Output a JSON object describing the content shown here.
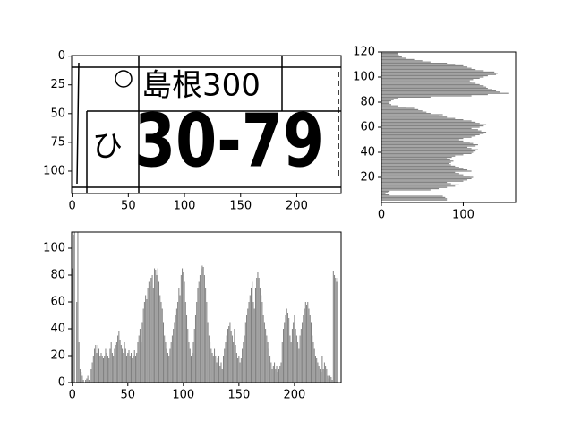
{
  "chart_data": [
    {
      "type": "image",
      "texts": [
        "島根300",
        "ひ",
        "30-79"
      ],
      "xlim": [
        -0.5,
        239.5
      ],
      "ylim": [
        119.5,
        -0.5
      ],
      "xticks": [
        0,
        50,
        100,
        150,
        200
      ],
      "yticks": [
        0,
        25,
        50,
        75,
        100
      ]
    },
    {
      "type": "barh",
      "color": "#808080",
      "values": [
        0,
        0,
        80,
        80,
        78,
        75,
        10,
        5,
        8,
        10,
        60,
        70,
        80,
        90,
        95,
        85,
        80,
        100,
        105,
        110,
        112,
        108,
        100,
        95,
        90,
        110,
        105,
        100,
        95,
        90,
        85,
        82,
        85,
        88,
        84,
        80,
        86,
        90,
        100,
        110,
        112,
        115,
        118,
        110,
        105,
        115,
        118,
        112,
        108,
        100,
        95,
        100,
        110,
        115,
        120,
        125,
        128,
        122,
        118,
        110,
        120,
        125,
        128,
        120,
        115,
        110,
        100,
        90,
        80,
        70,
        75,
        60,
        55,
        50,
        45,
        40,
        30,
        20,
        12,
        10,
        10,
        12,
        15,
        20,
        60,
        110,
        130,
        155,
        145,
        140,
        135,
        130,
        128,
        125,
        120,
        115,
        110,
        108,
        112,
        120,
        125,
        130,
        140,
        142,
        138,
        125,
        115,
        110,
        105,
        100,
        90,
        80,
        60,
        50,
        40,
        30,
        25,
        22,
        20,
        20
      ],
      "xlim": [
        0,
        164
      ],
      "ylim": [
        0,
        120
      ],
      "xticks": [
        0,
        100
      ],
      "yticks": [
        20,
        40,
        60,
        80,
        100,
        120
      ]
    },
    {
      "type": "bar",
      "color": "#808080",
      "values": [
        85,
        110,
        112,
        0,
        60,
        112,
        30,
        10,
        8,
        5,
        2,
        0,
        2,
        3,
        5,
        2,
        0,
        10,
        15,
        20,
        25,
        28,
        22,
        28,
        25,
        20,
        22,
        20,
        18,
        20,
        25,
        22,
        20,
        18,
        25,
        30,
        22,
        20,
        25,
        28,
        30,
        35,
        38,
        32,
        28,
        25,
        22,
        30,
        25,
        20,
        22,
        24,
        20,
        22,
        18,
        20,
        24,
        20,
        22,
        30,
        35,
        40,
        30,
        45,
        55,
        60,
        65,
        62,
        70,
        75,
        72,
        78,
        80,
        70,
        85,
        84,
        80,
        85,
        75,
        65,
        60,
        55,
        45,
        35,
        30,
        25,
        22,
        20,
        25,
        30,
        35,
        40,
        45,
        50,
        55,
        60,
        70,
        65,
        80,
        85,
        82,
        75,
        60,
        50,
        40,
        30,
        25,
        20,
        22,
        30,
        40,
        50,
        60,
        70,
        75,
        80,
        85,
        87,
        86,
        80,
        70,
        60,
        45,
        35,
        30,
        25,
        22,
        20,
        25,
        20,
        15,
        18,
        20,
        12,
        15,
        10,
        20,
        25,
        30,
        35,
        40,
        42,
        45,
        38,
        35,
        30,
        40,
        28,
        22,
        18,
        20,
        15,
        18,
        25,
        30,
        35,
        45,
        50,
        55,
        60,
        65,
        70,
        75,
        60,
        55,
        70,
        78,
        82,
        78,
        70,
        65,
        60,
        50,
        45,
        40,
        35,
        30,
        25,
        20,
        15,
        10,
        12,
        15,
        10,
        12,
        8,
        10,
        12,
        15,
        30,
        40,
        45,
        50,
        55,
        52,
        48,
        35,
        30,
        40,
        45,
        50,
        40,
        35,
        30,
        25,
        35,
        40,
        45,
        50,
        55,
        60,
        58,
        60,
        55,
        50,
        45,
        35,
        30,
        25,
        20,
        18,
        15,
        12,
        10,
        8,
        20,
        10,
        15,
        12,
        10,
        5,
        3,
        5,
        4,
        2,
        83,
        80,
        78,
        75,
        78
      ],
      "xlim": [
        -0.6,
        242
      ],
      "ylim": [
        0,
        112
      ],
      "xticks": [
        0,
        50,
        100,
        150,
        200
      ],
      "yticks": [
        0,
        20,
        40,
        60,
        80,
        100
      ]
    }
  ]
}
